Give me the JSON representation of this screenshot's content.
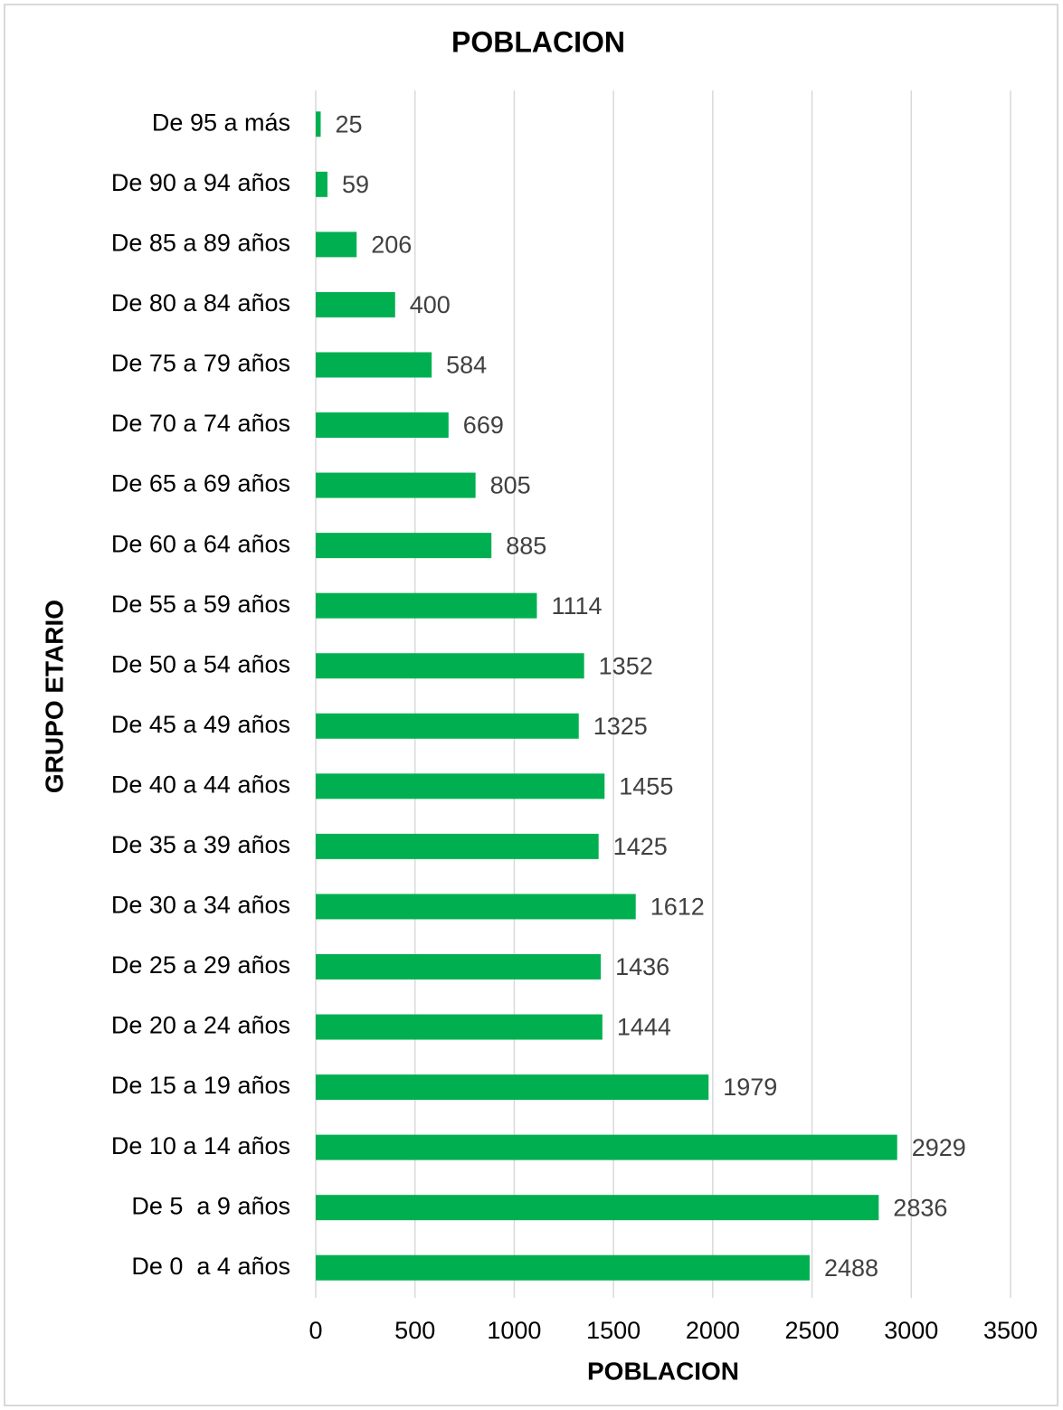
{
  "chart_data": {
    "type": "bar",
    "orientation": "horizontal",
    "title": "POBLACION",
    "x_label": "POBLACION",
    "y_label": "GRUPO ETARIO",
    "categories": [
      "De 95 a más",
      "De 90 a 94 años",
      "De 85 a 89 años",
      "De 80 a 84 años",
      "De 75 a 79 años",
      "De 70 a 74 años",
      "De 65 a 69 años",
      "De 60 a 64 años",
      "De 55 a 59 años",
      "De 50 a 54 años",
      "De 45 a 49 años",
      "De 40 a 44 años",
      "De 35 a 39 años",
      "De 30 a 34 años",
      "De 25 a 29 años",
      "De 20 a 24 años",
      "De 15 a 19 años",
      "De 10 a 14 años",
      "De 5  a 9 años",
      "De 0  a 4 años"
    ],
    "values": [
      25,
      59,
      206,
      400,
      584,
      669,
      805,
      885,
      1114,
      1352,
      1325,
      1455,
      1425,
      1612,
      1436,
      1444,
      1979,
      2929,
      2836,
      2488
    ],
    "color": "#00b050",
    "xlim": [
      0,
      3500
    ],
    "xticks": [
      0,
      500,
      1000,
      1500,
      2000,
      2500,
      3000,
      3500
    ],
    "grid": true
  }
}
